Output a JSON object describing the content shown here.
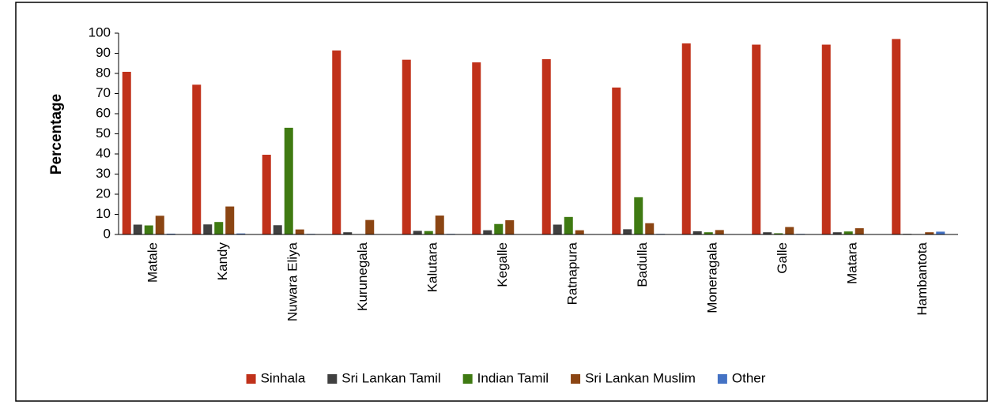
{
  "chart_data": {
    "type": "bar",
    "ylabel": "Percentage",
    "categories": [
      "Matale",
      "Kandy",
      "Nuwara Eliya",
      "Kurunegala",
      "Kalutara",
      "Kegalle",
      "Ratnapura",
      "Badulla",
      "Moneragala",
      "Galle",
      "Matara",
      "Hambantota"
    ],
    "series": [
      {
        "name": "Sinhala",
        "color": "#c0311a",
        "values": [
          80.8,
          74.4,
          39.6,
          91.4,
          86.8,
          85.5,
          87.1,
          73.0,
          94.9,
          94.3,
          94.3,
          97.1
        ]
      },
      {
        "name": "Sri Lankan Tamil",
        "color": "#404040",
        "values": [
          4.9,
          5.0,
          4.6,
          1.1,
          1.8,
          2.1,
          4.9,
          2.6,
          1.6,
          1.1,
          1.1,
          0.3
        ]
      },
      {
        "name": "Indian Tamil",
        "color": "#3f7a12",
        "values": [
          4.5,
          6.2,
          53.0,
          0.1,
          1.7,
          5.2,
          8.7,
          18.5,
          1.1,
          0.6,
          1.5,
          0.1
        ]
      },
      {
        "name": "Sri Lankan Muslim",
        "color": "#8b4513",
        "values": [
          9.3,
          13.9,
          2.5,
          7.2,
          9.4,
          7.1,
          2.1,
          5.6,
          2.2,
          3.7,
          3.1,
          1.1
        ]
      },
      {
        "name": "Other",
        "color": "#4472c4",
        "values": [
          0.4,
          0.5,
          0.3,
          0.2,
          0.3,
          0.1,
          0.2,
          0.3,
          0.2,
          0.3,
          0.1,
          1.4
        ]
      }
    ],
    "ylim": [
      0,
      100
    ],
    "yticks": [
      0,
      10,
      20,
      30,
      40,
      50,
      60,
      70,
      80,
      90,
      100
    ],
    "legend": "bottom"
  }
}
